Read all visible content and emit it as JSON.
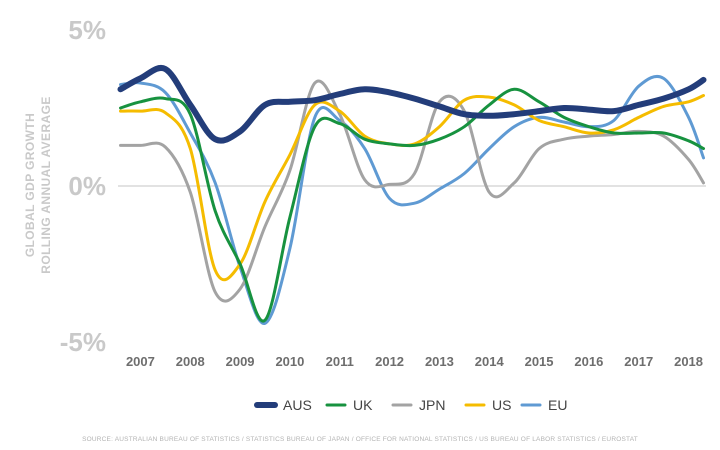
{
  "chart_data": {
    "type": "line",
    "ylabel_lines": [
      "GLOBAL GDP GROWTH",
      "ROLLING ANNUAL AVERAGE"
    ],
    "y_ticks": [
      {
        "value": 5,
        "label": "5%"
      },
      {
        "value": 0,
        "label": "0%"
      },
      {
        "value": -5,
        "label": "-5%"
      }
    ],
    "ylim": [
      -5,
      5
    ],
    "xlim": [
      2006.55,
      2018.35
    ],
    "x_ticks": [
      "2007",
      "2008",
      "2009",
      "2010",
      "2011",
      "2012",
      "2013",
      "2014",
      "2015",
      "2016",
      "2017",
      "2018"
    ],
    "grid": false,
    "zero_line": true,
    "legend_position": "bottom",
    "series": [
      {
        "name": "AUS",
        "color": "#233d7a",
        "width": 6,
        "x": [
          2006.6,
          2007.0,
          2007.5,
          2008.0,
          2008.5,
          2009.0,
          2009.5,
          2010.0,
          2010.5,
          2011.0,
          2011.5,
          2012.0,
          2012.5,
          2013.0,
          2013.5,
          2014.0,
          2014.5,
          2015.0,
          2015.5,
          2016.0,
          2016.5,
          2017.0,
          2017.5,
          2018.0,
          2018.3
        ],
        "y": [
          3.1,
          3.45,
          3.75,
          2.6,
          1.5,
          1.75,
          2.6,
          2.7,
          2.75,
          2.95,
          3.1,
          3.0,
          2.8,
          2.55,
          2.3,
          2.25,
          2.3,
          2.4,
          2.5,
          2.45,
          2.4,
          2.6,
          2.8,
          3.1,
          3.4
        ]
      },
      {
        "name": "UK",
        "color": "#17923f",
        "width": 3,
        "x": [
          2006.6,
          2007.0,
          2007.5,
          2008.0,
          2008.5,
          2009.0,
          2009.5,
          2010.0,
          2010.5,
          2011.0,
          2011.5,
          2012.0,
          2012.5,
          2013.0,
          2013.5,
          2014.0,
          2014.5,
          2015.0,
          2015.5,
          2016.0,
          2016.5,
          2017.0,
          2017.5,
          2018.0,
          2018.3
        ],
        "y": [
          2.5,
          2.7,
          2.8,
          2.3,
          -0.8,
          -2.5,
          -4.3,
          -1.0,
          1.9,
          2.0,
          1.5,
          1.35,
          1.3,
          1.5,
          1.9,
          2.6,
          3.1,
          2.7,
          2.2,
          1.9,
          1.7,
          1.7,
          1.7,
          1.45,
          1.2
        ]
      },
      {
        "name": "JPN",
        "color": "#a3a3a3",
        "width": 3,
        "x": [
          2006.6,
          2007.0,
          2007.5,
          2008.0,
          2008.5,
          2009.0,
          2009.5,
          2010.0,
          2010.5,
          2011.0,
          2011.5,
          2012.0,
          2012.5,
          2013.0,
          2013.5,
          2014.0,
          2014.5,
          2015.0,
          2015.5,
          2016.0,
          2016.5,
          2017.0,
          2017.5,
          2018.0,
          2018.3
        ],
        "y": [
          1.3,
          1.3,
          1.25,
          -0.2,
          -3.4,
          -3.3,
          -1.3,
          0.5,
          3.3,
          2.3,
          0.2,
          0.05,
          0.4,
          2.7,
          2.4,
          -0.2,
          0.1,
          1.2,
          1.5,
          1.6,
          1.65,
          1.75,
          1.6,
          0.85,
          0.1
        ]
      },
      {
        "name": "US",
        "color": "#f5bc00",
        "width": 3,
        "x": [
          2006.6,
          2007.0,
          2007.5,
          2008.0,
          2008.5,
          2009.0,
          2009.5,
          2010.0,
          2010.5,
          2011.0,
          2011.5,
          2012.0,
          2012.5,
          2013.0,
          2013.5,
          2014.0,
          2014.5,
          2015.0,
          2015.5,
          2016.0,
          2016.5,
          2017.0,
          2017.5,
          2018.0,
          2018.3
        ],
        "y": [
          2.4,
          2.4,
          2.35,
          1.2,
          -2.7,
          -2.5,
          -0.5,
          1.0,
          2.6,
          2.4,
          1.6,
          1.35,
          1.35,
          1.9,
          2.75,
          2.85,
          2.6,
          2.1,
          1.9,
          1.7,
          1.8,
          2.2,
          2.55,
          2.7,
          2.9
        ]
      },
      {
        "name": "EU",
        "color": "#5f9ad3",
        "width": 3,
        "x": [
          2006.6,
          2007.0,
          2007.5,
          2008.0,
          2008.5,
          2009.0,
          2009.5,
          2010.0,
          2010.5,
          2011.0,
          2011.5,
          2012.0,
          2012.5,
          2013.0,
          2013.5,
          2014.0,
          2014.5,
          2015.0,
          2015.5,
          2016.0,
          2016.5,
          2017.0,
          2017.5,
          2018.0,
          2018.3
        ],
        "y": [
          3.25,
          3.3,
          3.0,
          1.7,
          0.1,
          -2.6,
          -4.4,
          -2.0,
          2.2,
          2.1,
          1.2,
          -0.4,
          -0.55,
          -0.1,
          0.4,
          1.2,
          1.9,
          2.2,
          2.05,
          1.9,
          2.1,
          3.2,
          3.45,
          2.2,
          0.9
        ]
      }
    ]
  },
  "source": "SOURCE: AUSTRALIAN BUREAU OF STATISTICS / STATISTICS BUREAU OF JAPAN / OFFICE FOR NATIONAL STATISTICS / US BUREAU OF LABOR STATISTICS / EUROSTAT"
}
